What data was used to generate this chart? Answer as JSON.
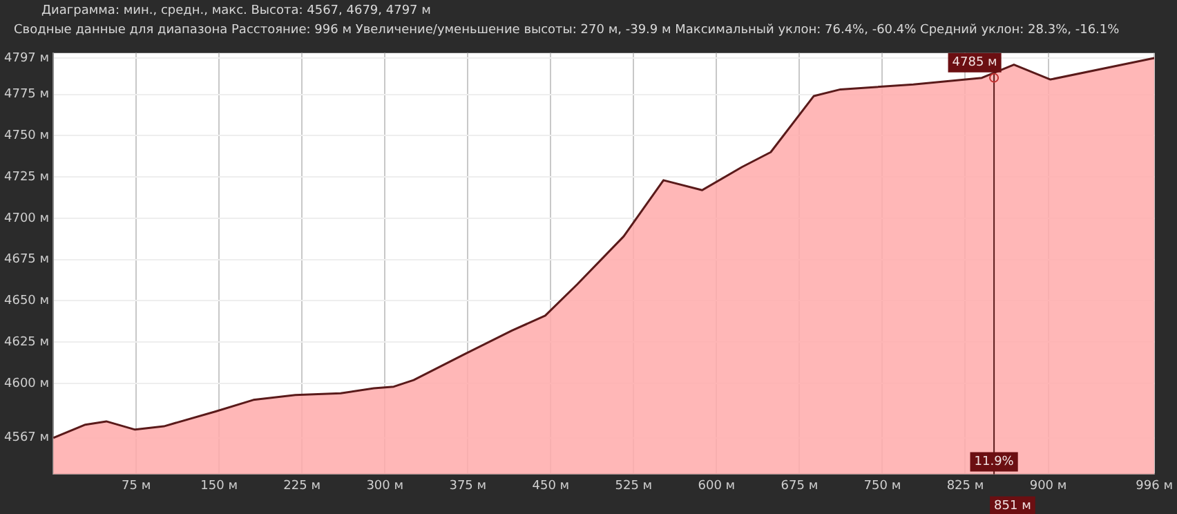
{
  "chart_data": {
    "type": "area",
    "title": "Диаграмма: мин., средн., макс. Высота: 4567, 4679, 4797 м",
    "subtitle": "Сводные данные для диапазона Расстояние: 996 м  Увеличение/уменьшение высоты: 270 м, -39.9 м  Максимальный уклон: 76.4%, -60.4%  Средний уклон: 28.3%, -16.1%",
    "x": [
      0,
      29,
      48,
      74,
      100,
      147,
      181,
      219,
      260,
      290,
      308,
      326,
      373,
      415,
      445,
      474,
      516,
      552,
      587,
      623,
      649,
      688,
      712,
      778,
      840,
      869,
      902,
      996
    ],
    "series": [
      {
        "color": "#5a1a1a",
        "values": [
          4567,
          4575,
          4577,
          4572,
          4574,
          4583,
          4590,
          4593,
          4594,
          4597,
          4598,
          4602,
          4618,
          4632,
          4641,
          4660,
          4689,
          4723,
          4717,
          4731,
          4740,
          4774,
          4778,
          4781,
          4785,
          4793,
          4784,
          4797
        ]
      }
    ],
    "xlim": [
      0,
      996
    ],
    "xticks": [
      {
        "value": 75,
        "label": "75 м"
      },
      {
        "value": 150,
        "label": "150 м"
      },
      {
        "value": 225,
        "label": "225 м"
      },
      {
        "value": 300,
        "label": "300 м"
      },
      {
        "value": 375,
        "label": "375 м"
      },
      {
        "value": 450,
        "label": "450 м"
      },
      {
        "value": 525,
        "label": "525 м"
      },
      {
        "value": 600,
        "label": "600 м"
      },
      {
        "value": 675,
        "label": "675 м"
      },
      {
        "value": 750,
        "label": "750 м"
      },
      {
        "value": 825,
        "label": "825 м"
      },
      {
        "value": 900,
        "label": "900 м"
      },
      {
        "value": 996,
        "label": "996 м"
      }
    ],
    "ylim": [
      4545,
      4800
    ],
    "yticks": [
      {
        "value": 4567,
        "label": "4567 м"
      },
      {
        "value": 4600,
        "label": "4600 м"
      },
      {
        "value": 4625,
        "label": "4625 м"
      },
      {
        "value": 4650,
        "label": "4650 м"
      },
      {
        "value": 4675,
        "label": "4675 м"
      },
      {
        "value": 4700,
        "label": "4700 м"
      },
      {
        "value": 4725,
        "label": "4725 м"
      },
      {
        "value": 4750,
        "label": "4750 м"
      },
      {
        "value": 4775,
        "label": "4775 м"
      },
      {
        "value": 4797,
        "label": "4797 м"
      }
    ],
    "ref_lines": [
      {
        "axis": "x",
        "value": 851,
        "label": "851 м",
        "color": "#5a1a1a"
      }
    ],
    "annotations": [
      {
        "text": "4785 м",
        "x": 851,
        "y": 4785
      },
      "11.9%"
    ],
    "grid": true,
    "legend": false,
    "marker": "none",
    "line_style": "solid"
  }
}
